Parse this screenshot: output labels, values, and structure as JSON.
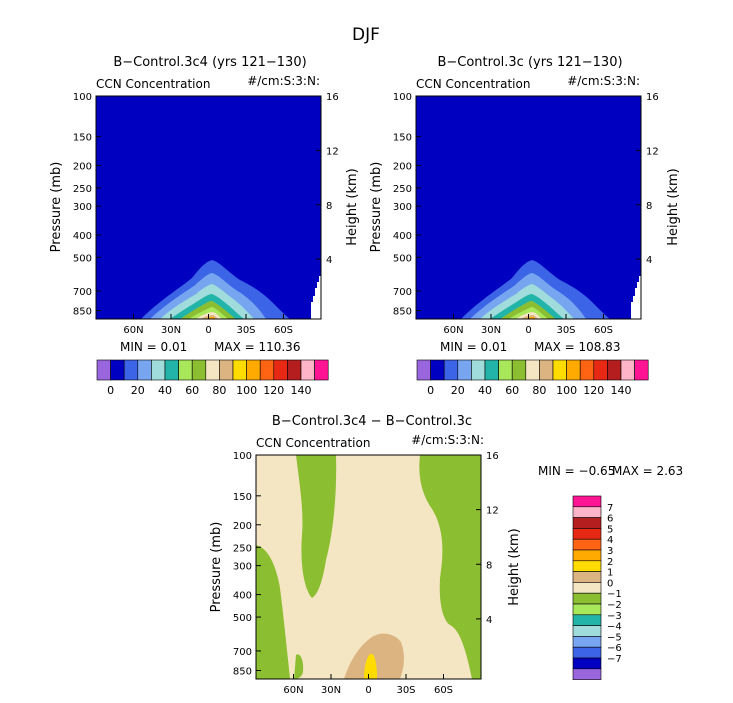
{
  "suptitle": "DJF",
  "colors": {
    "levels12": [
      "#9966dd",
      "#0000c0",
      "#3c64e6",
      "#78a5f0",
      "#a0dcdc",
      "#22b4a8",
      "#a8e65a",
      "#8cbe32",
      "#f5e6c3",
      "#dcb482",
      "#ffdc00",
      "#ffaa00",
      "#ff6414",
      "#e62814",
      "#b41e1e",
      "#ffb4c8",
      "#ff1493"
    ],
    "diff": [
      "#9966dd",
      "#0000c0",
      "#3c64e6",
      "#78a5f0",
      "#a0dcdc",
      "#22b4a8",
      "#a8e65a",
      "#8cbe32",
      "#f5e6c3",
      "#dcb482",
      "#ffdc00",
      "#ffaa00",
      "#ff6414",
      "#e62814",
      "#b41e1e",
      "#ffb4c8",
      "#ff1493"
    ]
  },
  "chart_data": [
    {
      "type": "contour",
      "title": "B−Control.3c4 (yrs 121−130)",
      "left_label": "CCN Concentration",
      "right_label": "#/cm:S:3:N:",
      "ylabel": "Pressure (mb)",
      "y2label": "Height (km)",
      "yticks": [
        "100",
        "150",
        "200",
        "250",
        "300",
        "400",
        "500",
        "700",
        "850"
      ],
      "y2ticks": [
        "16",
        "12",
        "8",
        "4"
      ],
      "xticks": [
        "60N",
        "30N",
        "0",
        "30S",
        "60S"
      ],
      "min_label": "MIN =    0.01",
      "max_label": "MAX = 110.36",
      "colorbar_labels": [
        "0",
        "20",
        "40",
        "60",
        "80",
        "100",
        "120",
        "140"
      ]
    },
    {
      "type": "contour",
      "title": "B−Control.3c (yrs 121−130)",
      "left_label": "CCN Concentration",
      "right_label": "#/cm:S:3:N:",
      "ylabel": "Pressure (mb)",
      "y2label": "Height (km)",
      "yticks": [
        "100",
        "150",
        "200",
        "250",
        "300",
        "400",
        "500",
        "700",
        "850"
      ],
      "y2ticks": [
        "16",
        "12",
        "8",
        "4"
      ],
      "xticks": [
        "60N",
        "30N",
        "0",
        "30S",
        "60S"
      ],
      "min_label": "MIN =    0.01",
      "max_label": "MAX = 108.83",
      "colorbar_labels": [
        "0",
        "20",
        "40",
        "60",
        "80",
        "100",
        "120",
        "140"
      ]
    },
    {
      "type": "contour",
      "title": "B−Control.3c4 − B−Control.3c",
      "left_label": "CCN Concentration",
      "right_label": "#/cm:S:3:N:",
      "ylabel": "Pressure (mb)",
      "y2label": "Height (km)",
      "yticks": [
        "100",
        "150",
        "200",
        "250",
        "300",
        "400",
        "500",
        "700",
        "850"
      ],
      "y2ticks": [
        "16",
        "12",
        "8",
        "4"
      ],
      "xticks": [
        "60N",
        "30N",
        "0",
        "30S",
        "60S"
      ],
      "min_label": "MIN =   −0.65",
      "max_label": "MAX =    2.63",
      "colorbar_labels": [
        "7",
        "6",
        "5",
        "4",
        "3",
        "2",
        "1",
        "0",
        "−1",
        "−2",
        "−3",
        "−4",
        "−5",
        "−6",
        "−7"
      ]
    }
  ]
}
